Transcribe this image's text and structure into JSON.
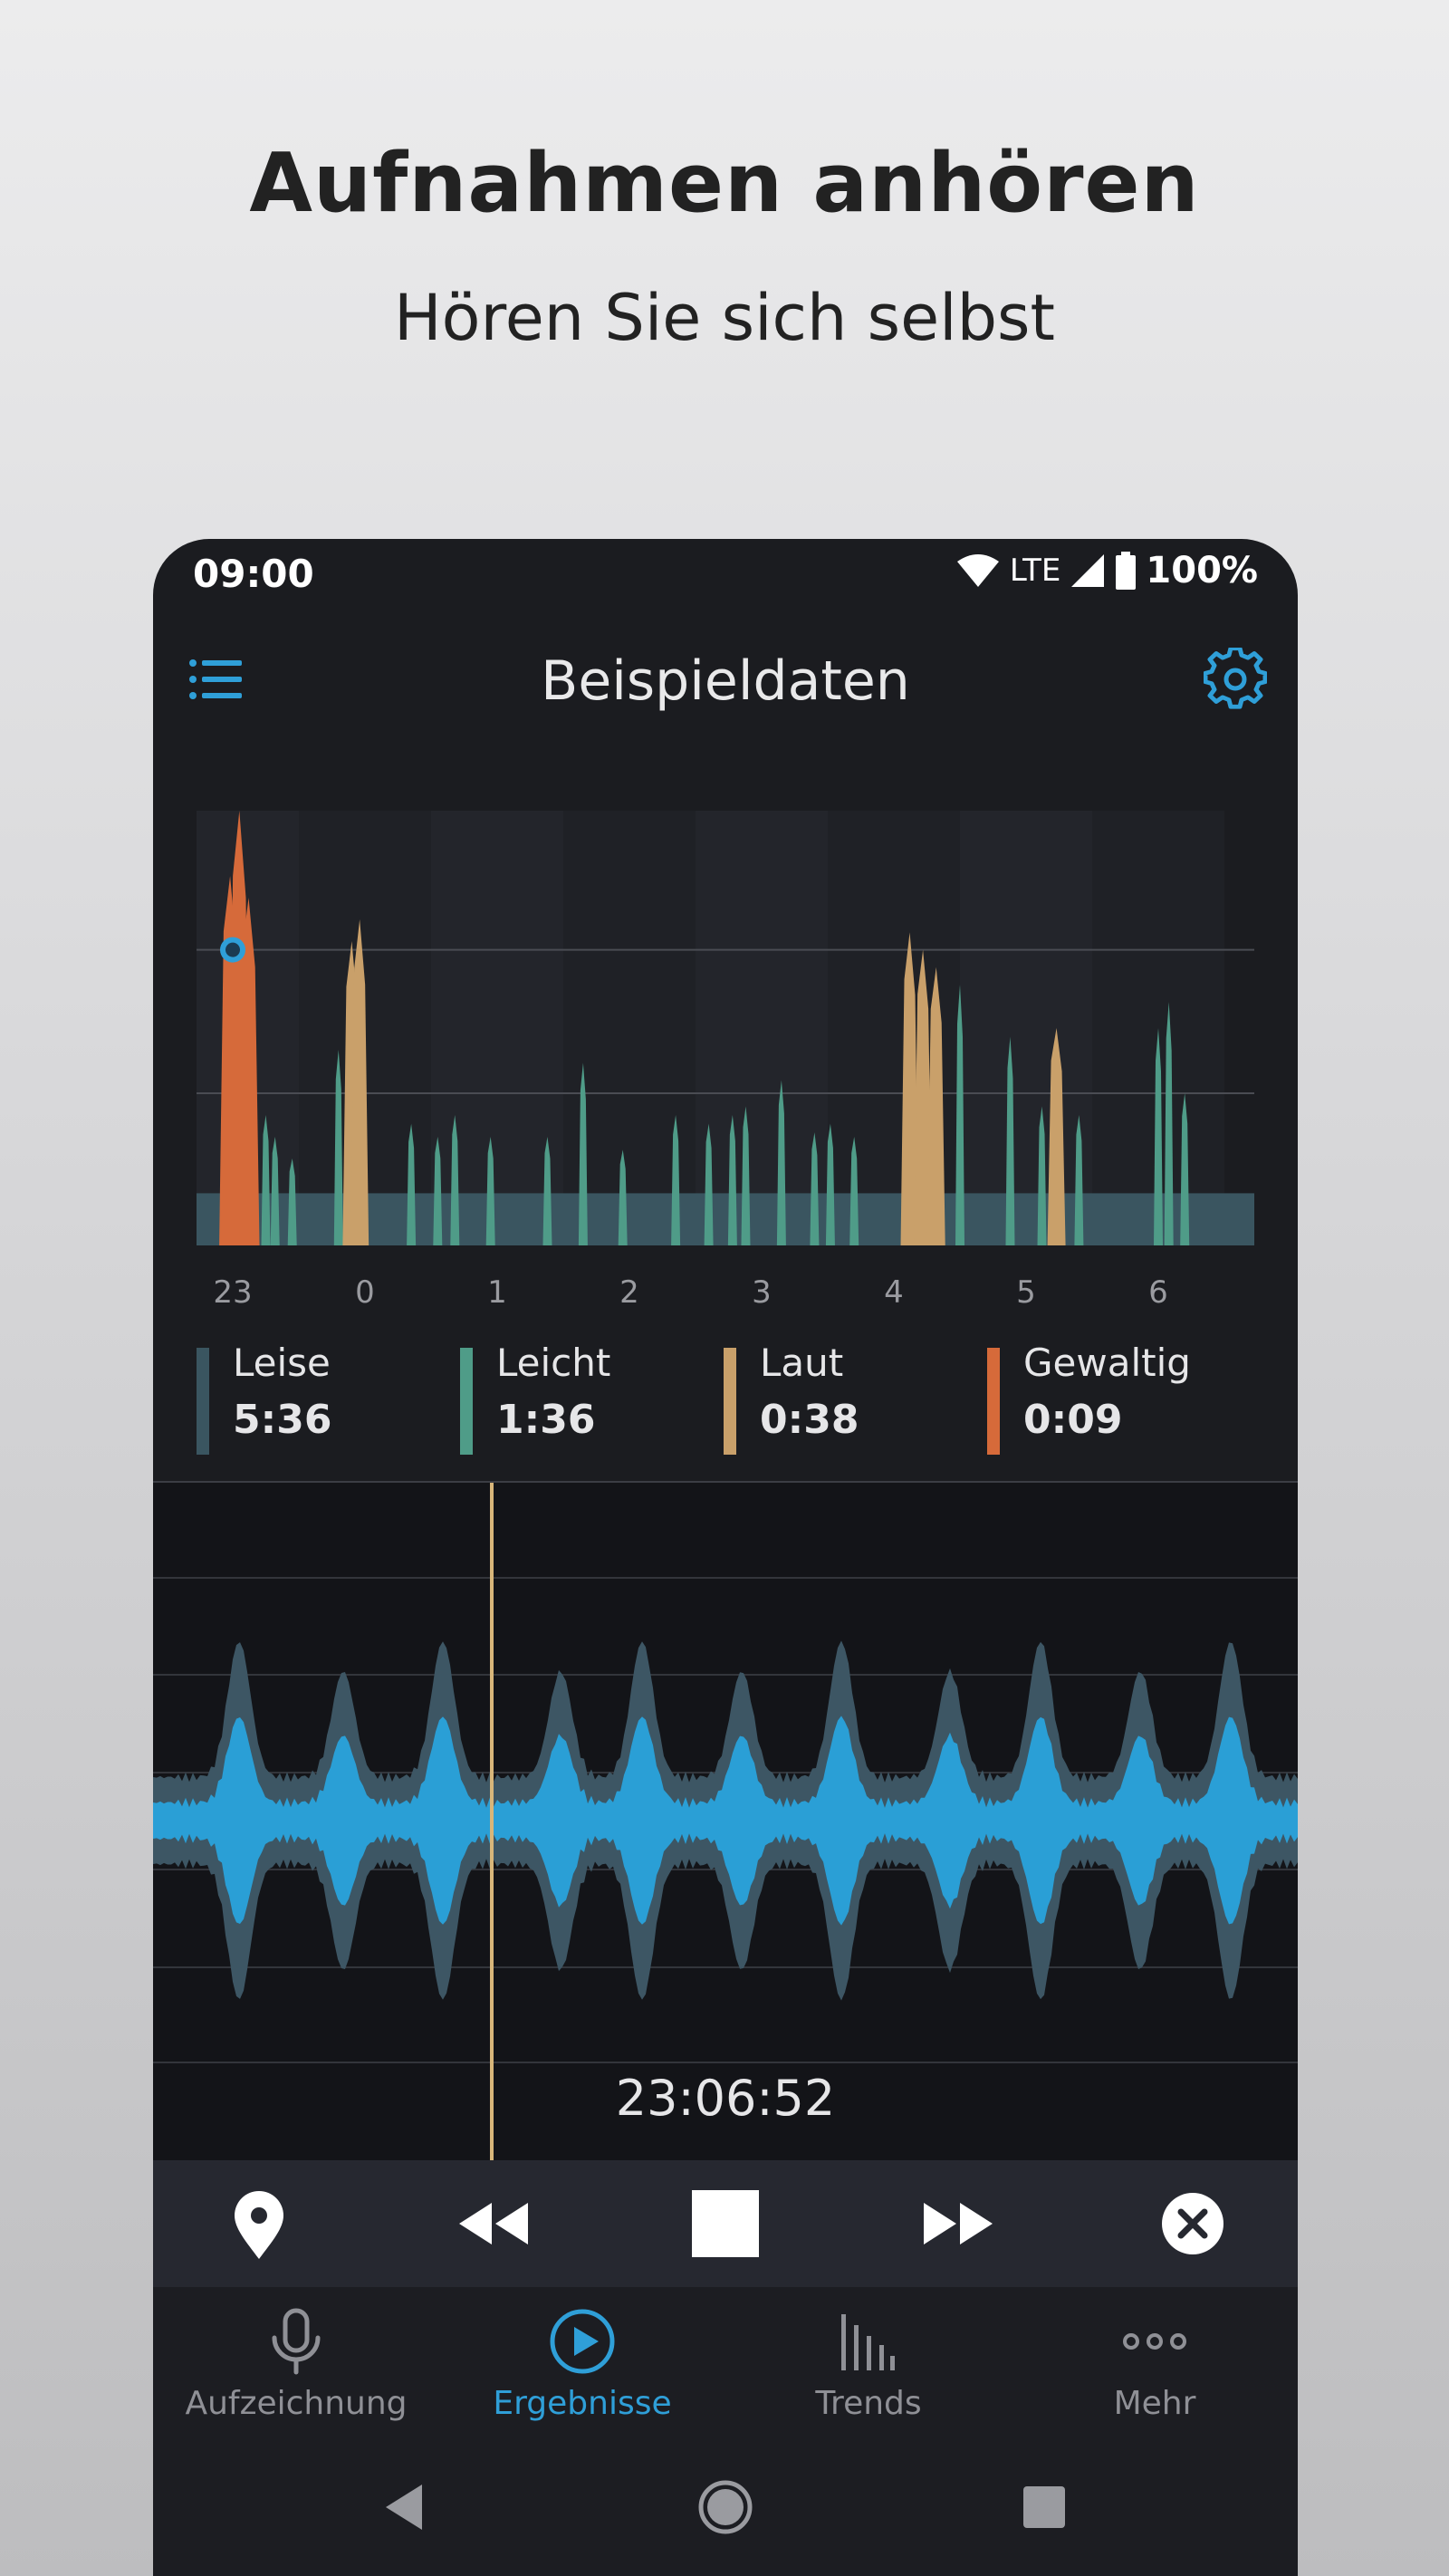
{
  "promo": {
    "title": "Aufnahmen anhören",
    "subtitle": "Hören Sie sich selbst"
  },
  "status_bar": {
    "time": "09:00",
    "network": "LTE",
    "battery": "100%",
    "icons": [
      "wifi-icon",
      "signal-icon",
      "battery-icon"
    ]
  },
  "app_bar": {
    "title": "Beispieldaten",
    "menu_icon": "list-menu-icon",
    "settings_icon": "gear-icon"
  },
  "chart_data": {
    "type": "area",
    "x_ticks": [
      "23",
      "0",
      "1",
      "2",
      "3",
      "4",
      "5",
      "6"
    ],
    "categories_legend": [
      "Leise",
      "Leicht",
      "Laut",
      "Gewaltig"
    ],
    "colors": {
      "Leise": "#3a5560",
      "Leicht": "#4f9c88",
      "Laut": "#c9a06a",
      "Gewaltig": "#d66a3a"
    },
    "threshold_marker_hour": 23.0,
    "quiet_baseline_fraction": 0.12,
    "peaks": [
      {
        "hour": 22.98,
        "height": 0.85,
        "kind": "Gewaltig"
      },
      {
        "hour": 23.05,
        "height": 1.0,
        "kind": "Gewaltig"
      },
      {
        "hour": 23.12,
        "height": 0.8,
        "kind": "Gewaltig"
      },
      {
        "hour": 23.25,
        "height": 0.3,
        "kind": "Leicht"
      },
      {
        "hour": 23.32,
        "height": 0.25,
        "kind": "Leicht"
      },
      {
        "hour": 23.45,
        "height": 0.2,
        "kind": "Leicht"
      },
      {
        "hour": 23.8,
        "height": 0.45,
        "kind": "Leicht"
      },
      {
        "hour": 23.9,
        "height": 0.7,
        "kind": "Laut"
      },
      {
        "hour": 23.96,
        "height": 0.75,
        "kind": "Laut"
      },
      {
        "hour": 0.35,
        "height": 0.28,
        "kind": "Leicht"
      },
      {
        "hour": 0.55,
        "height": 0.25,
        "kind": "Leicht"
      },
      {
        "hour": 0.68,
        "height": 0.3,
        "kind": "Leicht"
      },
      {
        "hour": 0.95,
        "height": 0.25,
        "kind": "Leicht"
      },
      {
        "hour": 1.38,
        "height": 0.25,
        "kind": "Leicht"
      },
      {
        "hour": 1.65,
        "height": 0.42,
        "kind": "Leicht"
      },
      {
        "hour": 1.95,
        "height": 0.22,
        "kind": "Leicht"
      },
      {
        "hour": 2.35,
        "height": 0.3,
        "kind": "Leicht"
      },
      {
        "hour": 2.6,
        "height": 0.28,
        "kind": "Leicht"
      },
      {
        "hour": 2.78,
        "height": 0.3,
        "kind": "Leicht"
      },
      {
        "hour": 2.88,
        "height": 0.32,
        "kind": "Leicht"
      },
      {
        "hour": 3.15,
        "height": 0.38,
        "kind": "Leicht"
      },
      {
        "hour": 3.4,
        "height": 0.26,
        "kind": "Leicht"
      },
      {
        "hour": 3.52,
        "height": 0.28,
        "kind": "Leicht"
      },
      {
        "hour": 3.7,
        "height": 0.25,
        "kind": "Leicht"
      },
      {
        "hour": 4.12,
        "height": 0.72,
        "kind": "Laut"
      },
      {
        "hour": 4.22,
        "height": 0.68,
        "kind": "Laut"
      },
      {
        "hour": 4.32,
        "height": 0.64,
        "kind": "Laut"
      },
      {
        "hour": 4.5,
        "height": 0.6,
        "kind": "Leicht"
      },
      {
        "hour": 4.88,
        "height": 0.48,
        "kind": "Leicht"
      },
      {
        "hour": 5.12,
        "height": 0.32,
        "kind": "Leicht"
      },
      {
        "hour": 5.23,
        "height": 0.5,
        "kind": "Laut"
      },
      {
        "hour": 5.4,
        "height": 0.3,
        "kind": "Leicht"
      },
      {
        "hour": 6.0,
        "height": 0.5,
        "kind": "Leicht"
      },
      {
        "hour": 6.08,
        "height": 0.56,
        "kind": "Leicht"
      },
      {
        "hour": 6.2,
        "height": 0.35,
        "kind": "Leicht"
      }
    ]
  },
  "legend": [
    {
      "name": "Leise",
      "value": "5:36",
      "color": "#3a5560"
    },
    {
      "name": "Leicht",
      "value": "1:36",
      "color": "#4f9c88"
    },
    {
      "name": "Laut",
      "value": "0:38",
      "color": "#c9a06a"
    },
    {
      "name": "Gewaltig",
      "value": "0:09",
      "color": "#d66a3a"
    }
  ],
  "waveform": {
    "timestamp": "23:06:52",
    "color_inner": "#2a9fd6",
    "color_outer": "#3d5664",
    "cursor_color": "#d8b67a"
  },
  "player": {
    "buttons": [
      "location-pin-icon",
      "rewind-icon",
      "stop-icon",
      "fast-forward-icon",
      "close-circle-icon"
    ]
  },
  "bottom_nav": {
    "items": [
      {
        "label": "Aufzeichnung",
        "icon": "microphone-icon",
        "active": false
      },
      {
        "label": "Ergebnisse",
        "icon": "play-circle-icon",
        "active": true
      },
      {
        "label": "Trends",
        "icon": "bar-chart-icon",
        "active": false
      },
      {
        "label": "Mehr",
        "icon": "more-dots-icon",
        "active": false
      }
    ]
  },
  "system_nav": {
    "buttons": [
      "back-icon",
      "home-icon",
      "recents-icon"
    ]
  }
}
